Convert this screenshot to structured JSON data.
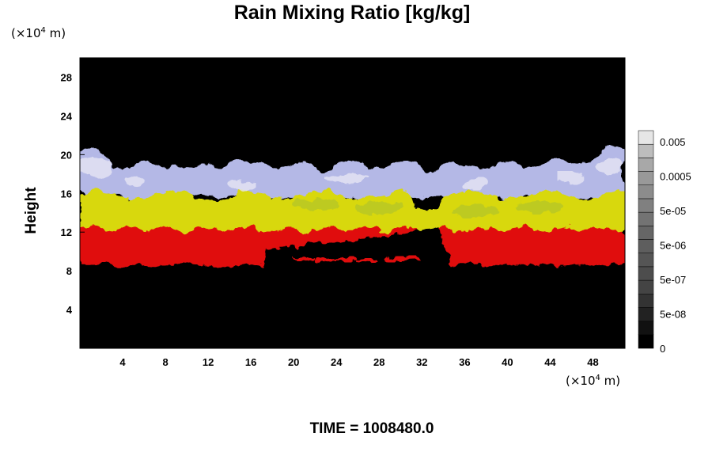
{
  "chart_data": {
    "type": "heatmap",
    "title": "Rain Mixing Ratio [kg/kg]",
    "xlabel": "",
    "ylabel": "Height",
    "x_unit_base": "(×10",
    "x_unit_exp": "4",
    "x_unit_tail": " m)",
    "y_unit_base": "(×10",
    "y_unit_exp": "4",
    "y_unit_tail": " m)",
    "xlim": [
      0,
      51
    ],
    "ylim": [
      0,
      30
    ],
    "x_ticks": [
      "4",
      "8",
      "12",
      "16",
      "20",
      "24",
      "28",
      "32",
      "36",
      "40",
      "44",
      "48"
    ],
    "y_ticks": [
      "4",
      "8",
      "12",
      "16",
      "20",
      "24",
      "28"
    ],
    "colorbar": {
      "tick_labels": [
        "0.005",
        "0.0005",
        "5e-05",
        "5e-06",
        "5e-07",
        "5e-08",
        "0"
      ],
      "levels": 16,
      "colors": [
        "#000000",
        "#111111",
        "#222222",
        "#333333",
        "#444444",
        "#4d4d4d",
        "#555555",
        "#5e5e5e",
        "#666666",
        "#737373",
        "#808080",
        "#8c8c8c",
        "#999999",
        "#a8a8a8",
        "#bdbdbd",
        "#e6e6e6"
      ]
    },
    "layers": [
      {
        "name": "red",
        "color": "#e01010",
        "bottom_y": 8.6,
        "top_y": 12.3
      },
      {
        "name": "yellow",
        "color": "#d8d810",
        "bottom_y": 12.0,
        "top_y": 15.8
      },
      {
        "name": "lavender",
        "color": "#b4b8e6",
        "bottom_y": 15.5,
        "top_y": 19.5
      }
    ],
    "footer": "TIME = 1008480.0"
  }
}
